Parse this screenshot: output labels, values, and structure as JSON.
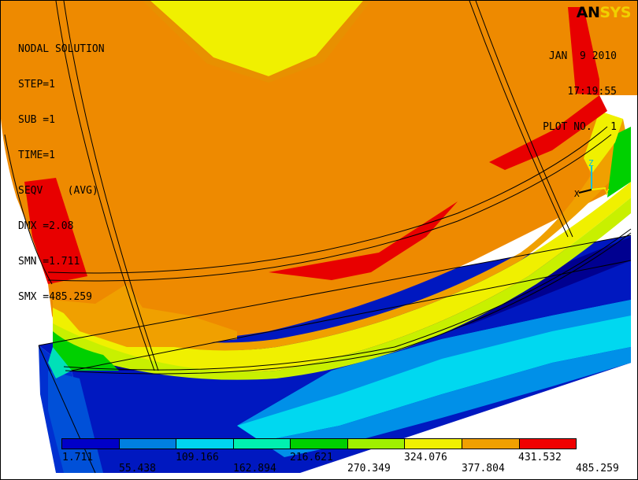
{
  "logo": {
    "part1": "AN",
    "part2": "SYS"
  },
  "info_lines": [
    "NODAL SOLUTION",
    "STEP=1",
    "SUB =1",
    "TIME=1",
    "SEQV    (AVG)",
    "DMX =2.08",
    "SMN =1.711",
    "SMX =485.259"
  ],
  "stamp": {
    "date": "JAN  9 2010",
    "time": "17:19:55",
    "plot": "PLOT NO.   1"
  },
  "triad": {
    "x": "X",
    "y": "Y",
    "z": "Z"
  },
  "legend": {
    "colors": [
      "#0000c8",
      "#0080e0",
      "#00d4f0",
      "#00f0b0",
      "#00d000",
      "#a0f000",
      "#f0f000",
      "#f0a000",
      "#f00000"
    ],
    "labels_top": [
      "1.711",
      "109.166",
      "216.621",
      "324.076",
      "431.532"
    ],
    "labels_bottom": [
      "55.438",
      "162.894",
      "270.349",
      "377.804",
      "485.259"
    ]
  },
  "palette": {
    "orange": "#ee8a00",
    "deep_orange": "#e07800",
    "red": "#e80000",
    "yellow": "#f0f000",
    "yellow_green": "#c8f000",
    "green": "#00d000",
    "teal": "#00e0b8",
    "cyan": "#00e0f0",
    "light_blue": "#0090e8",
    "blue": "#0018c0",
    "navy": "#000090"
  }
}
